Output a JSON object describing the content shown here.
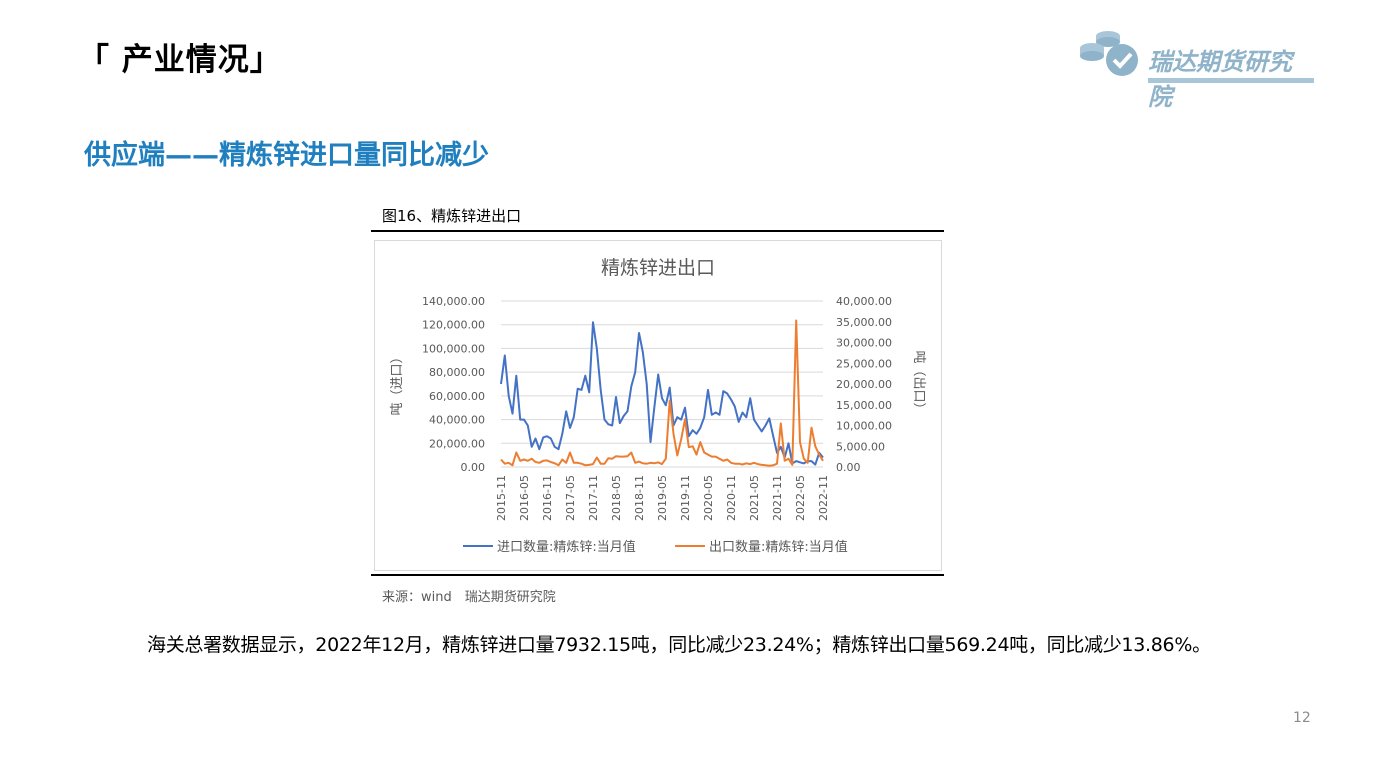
{
  "header": {
    "title": "「 产业情况」"
  },
  "logo": {
    "text": "瑞达期货研究院",
    "icon": "coin-stack-check-icon",
    "color": "#8fb3c9"
  },
  "section": {
    "subtitle": "供应端——精炼锌进口量同比减少"
  },
  "figure": {
    "caption": "图16、精炼锌进出口",
    "source": "来源：wind　瑞达期货研究院"
  },
  "summary": "海关总署数据显示，2022年12月，精炼锌进口量7932.15吨，同比减少23.24%；精炼锌出口量569.24吨，同比减少13.86%。",
  "page_number": "12",
  "chart_data": {
    "type": "line",
    "title": "精炼锌进出口",
    "ylabel_left": "吨（进口）",
    "ylabel_right": "吨（出口）",
    "ylim_left": [
      0,
      140000
    ],
    "ylim_right": [
      0,
      40000
    ],
    "yticks_left": [
      "140,000.00",
      "120,000.00",
      "100,000.00",
      "80,000.00",
      "60,000.00",
      "40,000.00",
      "20,000.00",
      "0.00"
    ],
    "yticks_right": [
      "40,000.00",
      "35,000.00",
      "30,000.00",
      "25,000.00",
      "20,000.00",
      "15,000.00",
      "10,000.00",
      "5,000.00",
      "0.00"
    ],
    "xtick_labels": [
      "2015-11",
      "2016-05",
      "2016-11",
      "2017-05",
      "2017-11",
      "2018-05",
      "2018-11",
      "2019-05",
      "2019-11",
      "2020-05",
      "2020-11",
      "2021-05",
      "2021-11",
      "2022-05",
      "2022-11"
    ],
    "grid": true,
    "legend_position": "bottom",
    "series": [
      {
        "name": "进口数量:精炼锌:当月值",
        "axis": "left",
        "color": "#4472c4",
        "values": [
          70000,
          94000,
          60000,
          45000,
          77000,
          40000,
          40000,
          35000,
          17000,
          24000,
          15000,
          25000,
          26000,
          24000,
          17000,
          15000,
          28000,
          47000,
          33000,
          42000,
          66000,
          65000,
          77000,
          63000,
          122000,
          100000,
          65000,
          40000,
          36000,
          35000,
          59000,
          37000,
          43000,
          47000,
          68000,
          80000,
          113000,
          97000,
          70000,
          21000,
          50000,
          78000,
          58000,
          52000,
          67000,
          35000,
          42000,
          40000,
          50000,
          26000,
          31000,
          28000,
          33000,
          42000,
          65000,
          44000,
          46000,
          44000,
          64000,
          62000,
          57000,
          51000,
          38000,
          46000,
          42000,
          58000,
          40000,
          35000,
          30000,
          35000,
          41000,
          26000,
          12000,
          17000,
          8000,
          20000,
          3000,
          5000,
          4000,
          3000,
          5000,
          5000,
          2000,
          12000,
          8000
        ]
      },
      {
        "name": "出口数量:精炼锌:当月值",
        "axis": "right",
        "color": "#ed7d31",
        "values": [
          1800,
          800,
          1000,
          400,
          3500,
          1500,
          1800,
          1500,
          2000,
          1200,
          1000,
          1500,
          1600,
          1200,
          900,
          400,
          1800,
          1000,
          3500,
          1000,
          1000,
          800,
          400,
          500,
          700,
          2300,
          800,
          800,
          2100,
          2000,
          2600,
          2500,
          2500,
          2600,
          3500,
          1000,
          1300,
          900,
          800,
          1000,
          900,
          1100,
          700,
          2000,
          16000,
          8000,
          2800,
          6700,
          11500,
          4800,
          5000,
          3000,
          6000,
          3500,
          3000,
          2500,
          2500,
          2000,
          1500,
          1800,
          1000,
          800,
          800,
          600,
          900,
          700,
          1000,
          700,
          500,
          400,
          300,
          400,
          800,
          10500,
          1500,
          2000,
          500,
          35300,
          6000,
          2000,
          1000,
          9500,
          5000,
          3000,
          1500
        ]
      }
    ]
  }
}
